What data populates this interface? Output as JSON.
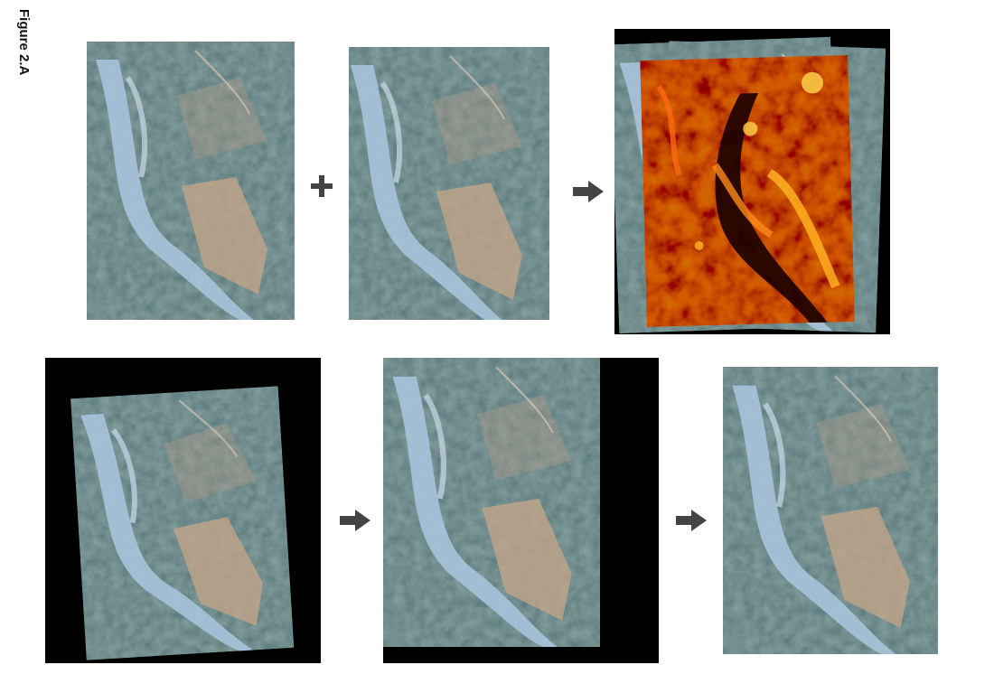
{
  "figure_label": "Figure 2.A",
  "icons": {
    "plus": "plus-icon",
    "arrow": "arrow-right-icon"
  },
  "colors": {
    "background": "#ffffff",
    "frame_black": "#000000",
    "operator_gray": "#444444",
    "forest": "#3d5a45",
    "river": "#a9c3dc",
    "clearing": "#c7a588",
    "heat_low": "#7a0a00",
    "heat_high": "#ffd24a"
  }
}
